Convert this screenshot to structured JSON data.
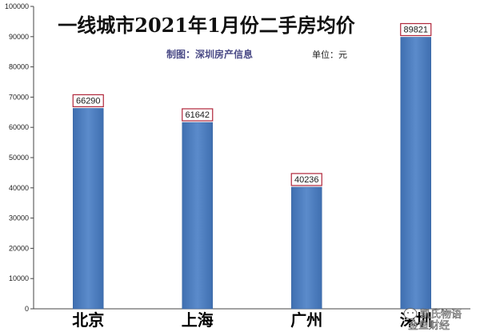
{
  "chart_data": {
    "type": "bar",
    "title": "一线城市2021年1月份二手房均价",
    "subtitle": "制图：深圳房产信息",
    "unit": "单位：元",
    "categories": [
      "北京",
      "上海",
      "广州",
      "深圳"
    ],
    "values": [
      66290,
      61642,
      40236,
      89821
    ],
    "data_labels": [
      "66290",
      "61642",
      "40236",
      "89821"
    ],
    "ylim": [
      0,
      100000
    ],
    "yticks": [
      0,
      10000,
      20000,
      30000,
      40000,
      50000,
      60000,
      70000,
      80000,
      90000,
      100000
    ],
    "ytick_labels": [
      "0",
      "10000",
      "20000",
      "30000",
      "40000",
      "50000",
      "60000",
      "70000",
      "80000",
      "90000",
      "100000"
    ],
    "grid": false,
    "xlabel": "",
    "ylabel": "",
    "bar_color": "#4f7fc0",
    "label_border_color": "#b0263a"
  },
  "watermark": {
    "text": "凯氏物语",
    "text2": "金鱼财经",
    "icon": "wechat-bubble-icon"
  }
}
